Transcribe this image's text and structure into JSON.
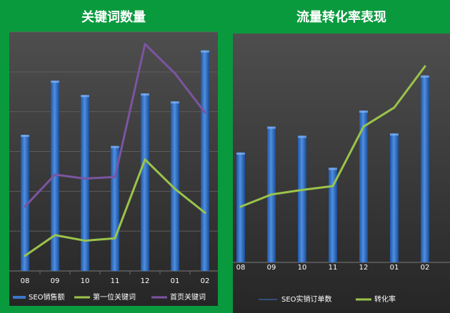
{
  "chart_data": [
    {
      "type": "bar",
      "title": "关键词数量",
      "categories": [
        "08",
        "09",
        "10",
        "11",
        "12",
        "01",
        "02"
      ],
      "series": [
        {
          "name": "SEO销售额",
          "type": "bar",
          "color": "#3a78c9",
          "values": [
            171,
            239,
            221,
            157,
            223,
            213,
            277
          ]
        },
        {
          "name": "第一位关键词",
          "type": "line",
          "color": "#9bc34b",
          "values": [
            19,
            45,
            38,
            41,
            140,
            103,
            73
          ]
        },
        {
          "name": "首页关键词",
          "type": "line",
          "color": "#7b55a0",
          "values": [
            81,
            121,
            116,
            118,
            285,
            248,
            199
          ]
        }
      ],
      "ylim": [
        0,
        300
      ],
      "grid": true,
      "legend": "bottom"
    },
    {
      "type": "bar",
      "title": "流量转化率表现",
      "categories": [
        "08",
        "09",
        "10",
        "11",
        "12",
        "01",
        "02"
      ],
      "series": [
        {
          "name": "SEO实销订单数",
          "type": "bar",
          "color": "#3a78c9",
          "values": [
            144,
            178,
            166,
            124,
            199,
            169,
            245
          ]
        },
        {
          "name": "转化率",
          "type": "line",
          "color": "#9bc34b",
          "values": [
            73,
            89,
            95,
            100,
            178,
            203,
            257
          ]
        }
      ],
      "ylim": [
        0,
        300
      ],
      "grid": false,
      "legend": "bottom"
    }
  ]
}
